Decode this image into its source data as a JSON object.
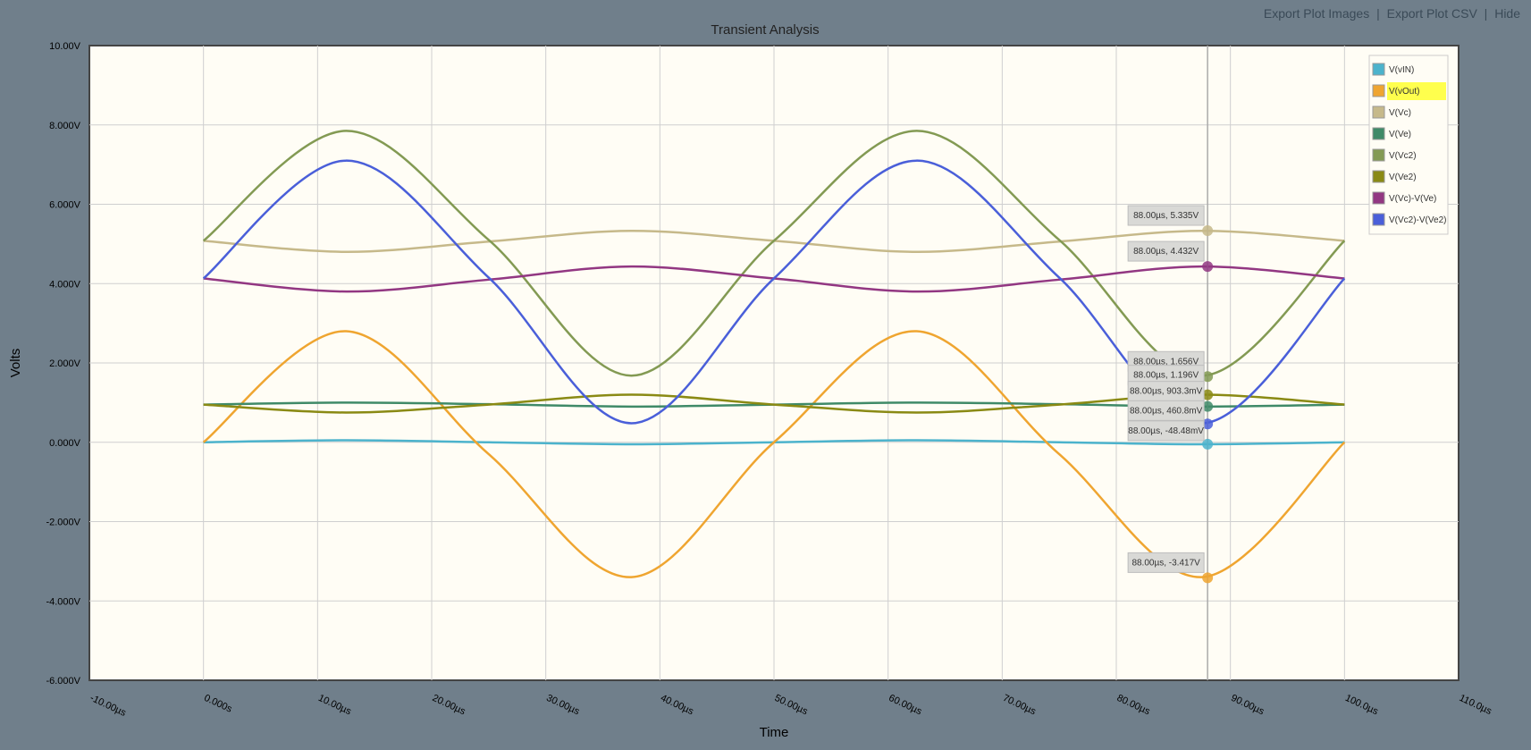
{
  "toolbar": {
    "export_images": "Export Plot Images",
    "separator": "|",
    "export_csv": "Export Plot CSV",
    "hide": "Hide"
  },
  "chart_data": {
    "type": "line",
    "title": "Transient Analysis",
    "xlabel": "Time",
    "ylabel": "Volts",
    "xlim": [
      -10,
      110
    ],
    "ylim": [
      -6,
      10
    ],
    "xticks": [
      "-10.00µs",
      "0.000s",
      "10.00µs",
      "20.00µs",
      "30.00µs",
      "40.00µs",
      "50.00µs",
      "60.00µs",
      "70.00µs",
      "80.00µs",
      "90.00µs",
      "100.0µs",
      "110.0µs"
    ],
    "yticks": [
      "10.00V",
      "8.000V",
      "6.000V",
      "4.000V",
      "2.000V",
      "0.000V",
      "-2.000V",
      "-4.000V",
      "-6.000V"
    ],
    "grid": true,
    "legend_position": "top-right",
    "x_units": "µs",
    "series": [
      {
        "name": "V(vIN)",
        "color": "#4cb3cc",
        "x": [
          0,
          12.5,
          25,
          37.5,
          50,
          62.5,
          75,
          87.5,
          100
        ],
        "values": [
          0,
          0.05,
          0,
          -0.05,
          0,
          0.05,
          0,
          -0.05,
          0
        ]
      },
      {
        "name": "V(vOut)",
        "color": "#efa530",
        "x": [
          0,
          12.5,
          25,
          37.5,
          50,
          62.5,
          75,
          87.5,
          100
        ],
        "values": [
          0,
          2.8,
          -0.3,
          -3.4,
          0,
          2.8,
          -0.3,
          -3.4,
          0
        ],
        "highlighted": true
      },
      {
        "name": "V(Vc)",
        "color": "#c6b98a",
        "x": [
          0,
          12.5,
          25,
          37.5,
          50,
          62.5,
          75,
          87.5,
          100
        ],
        "values": [
          5.08,
          4.8,
          5.06,
          5.33,
          5.08,
          4.8,
          5.06,
          5.33,
          5.08
        ]
      },
      {
        "name": "V(Ve)",
        "color": "#3f8a68",
        "x": [
          0,
          12.5,
          25,
          37.5,
          50,
          62.5,
          75,
          87.5,
          100
        ],
        "values": [
          0.95,
          1.0,
          0.96,
          0.9,
          0.95,
          1.0,
          0.96,
          0.9,
          0.95
        ]
      },
      {
        "name": "V(Vc2)",
        "color": "#839a53",
        "x": [
          0,
          12.5,
          25,
          37.5,
          50,
          62.5,
          75,
          87.5,
          100
        ],
        "values": [
          5.08,
          7.85,
          5.1,
          1.68,
          5.08,
          7.85,
          5.1,
          1.68,
          5.08
        ]
      },
      {
        "name": "V(Ve2)",
        "color": "#8a8a14",
        "x": [
          0,
          12.5,
          25,
          37.5,
          50,
          62.5,
          75,
          87.5,
          100
        ],
        "values": [
          0.95,
          0.75,
          0.95,
          1.2,
          0.95,
          0.75,
          0.95,
          1.2,
          0.95
        ]
      },
      {
        "name": "V(Vc)-V(Ve)",
        "color": "#923782",
        "x": [
          0,
          12.5,
          25,
          37.5,
          50,
          62.5,
          75,
          87.5,
          100
        ],
        "values": [
          4.13,
          3.8,
          4.1,
          4.43,
          4.13,
          3.8,
          4.1,
          4.43,
          4.13
        ]
      },
      {
        "name": "V(Vc2)-V(Ve2)",
        "color": "#4a5fd9",
        "x": [
          0,
          12.5,
          25,
          37.5,
          50,
          62.5,
          75,
          87.5,
          100
        ],
        "values": [
          4.13,
          7.1,
          4.15,
          0.48,
          4.13,
          7.1,
          4.15,
          0.48,
          4.13
        ]
      }
    ],
    "cursor": {
      "x": 88,
      "tooltips": [
        {
          "text": "88.00µs, 5.335V",
          "value": 5.335,
          "color": "#c6b98a"
        },
        {
          "text": "88.00µs, 4.432V",
          "value": 4.432,
          "color": "#923782"
        },
        {
          "text": "88.00µs, 1.656V",
          "value": 1.656,
          "color": "#839a53"
        },
        {
          "text": "88.00µs, 1.196V",
          "value": 1.196,
          "color": "#8a8a14"
        },
        {
          "text": "88.00µs, 903.3mV",
          "value": 0.9033,
          "color": "#3f8a68"
        },
        {
          "text": "88.00µs, 460.8mV",
          "value": 0.4608,
          "color": "#4a5fd9"
        },
        {
          "text": "88.00µs, -48.48mV",
          "value": -0.04848,
          "color": "#4cb3cc"
        },
        {
          "text": "88.00µs, -3.417V",
          "value": -3.417,
          "color": "#efa530"
        }
      ]
    }
  }
}
